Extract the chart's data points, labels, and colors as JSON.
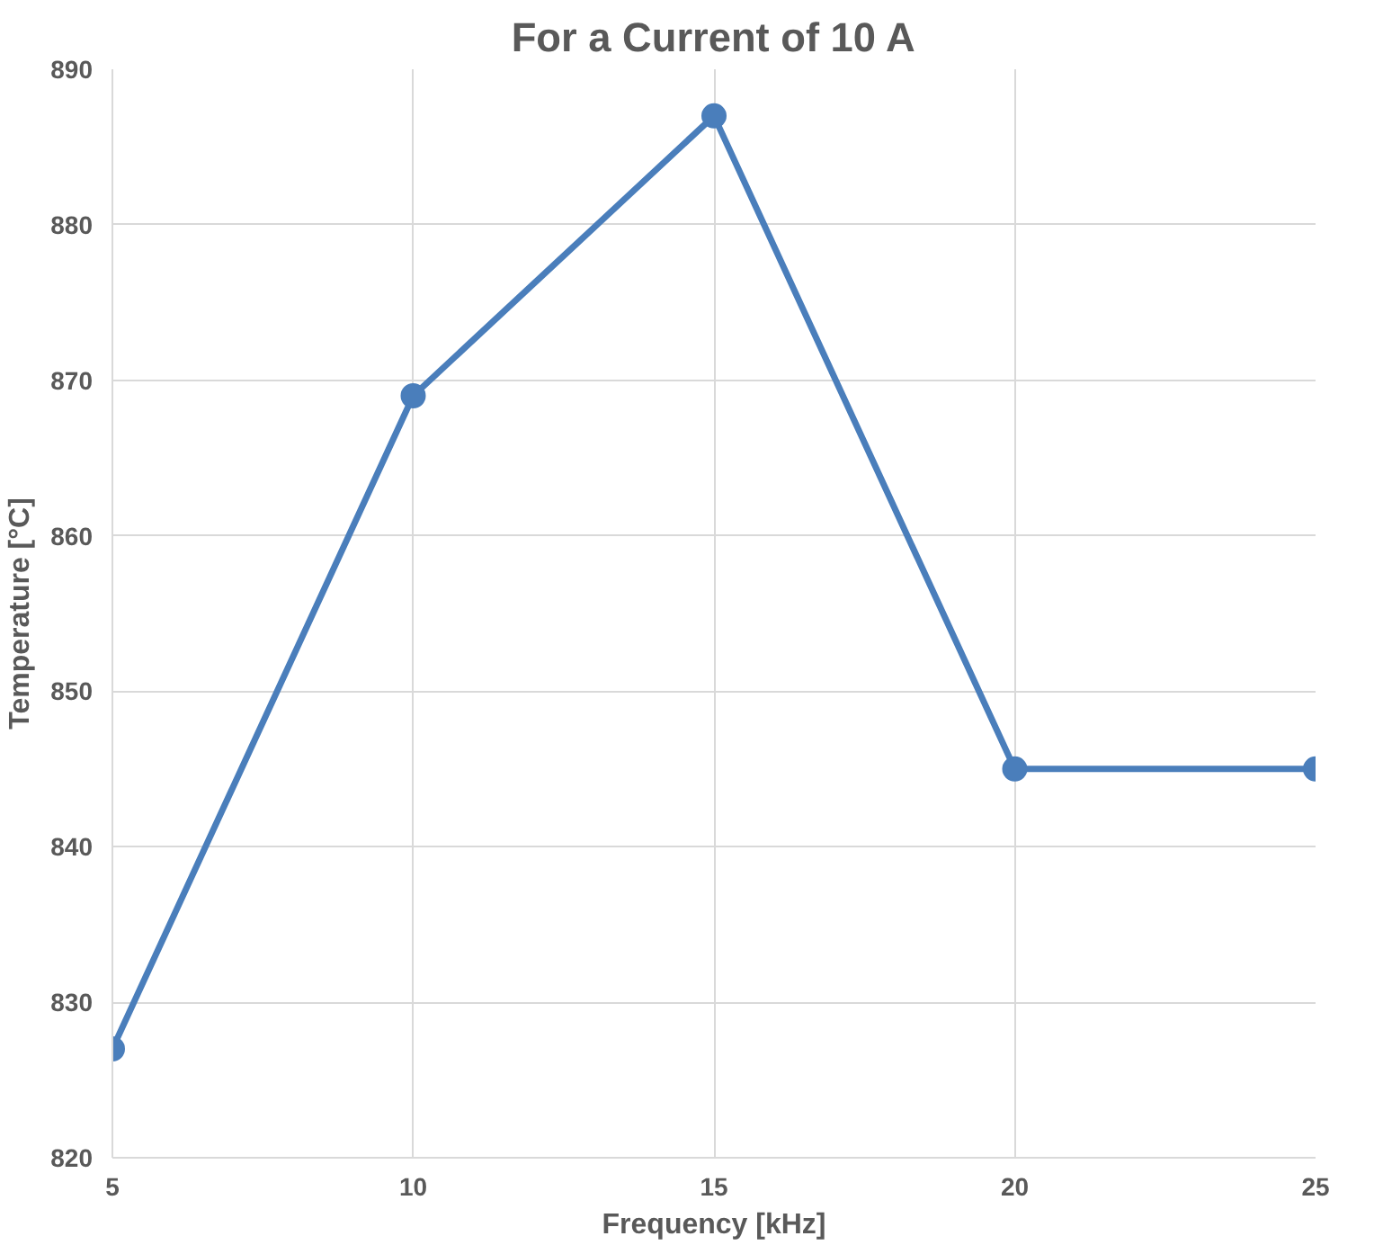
{
  "chart_data": {
    "type": "line",
    "title": "For a Current of 10 A",
    "xlabel": "Frequency [kHz]",
    "ylabel": "Temperature [°C]",
    "x": [
      5,
      10,
      15,
      20,
      25
    ],
    "series": [
      {
        "color": "#4a7ebb",
        "values": [
          827,
          869,
          887,
          845,
          845
        ]
      }
    ],
    "xlim": [
      5,
      25
    ],
    "xticks": [
      5,
      10,
      15,
      20,
      25
    ],
    "ylim": [
      820,
      890
    ],
    "yticks": [
      820,
      830,
      840,
      850,
      860,
      870,
      880,
      890
    ],
    "grid": true,
    "marker": "circle",
    "line_style": "solid"
  }
}
